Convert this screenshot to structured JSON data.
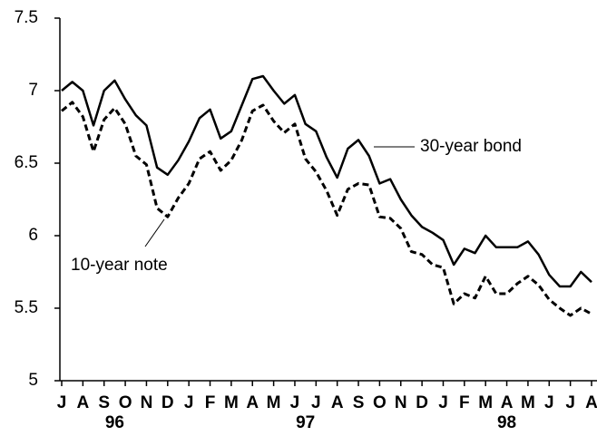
{
  "chart_data": {
    "type": "line",
    "x": [
      0,
      0.5,
      1,
      1.5,
      2,
      2.5,
      3,
      3.5,
      4,
      4.5,
      5,
      5.5,
      6,
      6.5,
      7,
      7.5,
      8,
      8.5,
      9,
      9.5,
      10,
      10.5,
      11,
      11.5,
      12,
      12.5,
      13,
      13.5,
      14,
      14.5,
      15,
      15.5,
      16,
      16.5,
      17,
      17.5,
      18,
      18.5,
      19,
      19.5,
      20,
      20.5,
      21,
      21.5,
      22,
      22.5,
      23,
      23.5,
      24,
      24.5,
      25
    ],
    "series": [
      {
        "name": "30-year bond",
        "color": "#000000",
        "line_style": "solid",
        "values": [
          7.0,
          7.06,
          7.0,
          6.76,
          7.0,
          7.07,
          6.94,
          6.83,
          6.76,
          6.47,
          6.42,
          6.52,
          6.65,
          6.81,
          6.87,
          6.67,
          6.72,
          6.9,
          7.08,
          7.1,
          7.0,
          6.91,
          6.97,
          6.77,
          6.72,
          6.54,
          6.4,
          6.6,
          6.66,
          6.55,
          6.36,
          6.39,
          6.25,
          6.14,
          6.06,
          6.02,
          5.97,
          5.8,
          5.91,
          5.88,
          6.0,
          5.92,
          5.92,
          5.92,
          5.96,
          5.87,
          5.73,
          5.65,
          5.65,
          5.75,
          5.68
        ]
      },
      {
        "name": "10-year note",
        "color": "#000000",
        "line_style": "dashed",
        "values": [
          6.86,
          6.92,
          6.82,
          6.58,
          6.8,
          6.88,
          6.77,
          6.55,
          6.49,
          6.19,
          6.13,
          6.26,
          6.36,
          6.53,
          6.58,
          6.45,
          6.52,
          6.66,
          6.86,
          6.9,
          6.79,
          6.71,
          6.77,
          6.53,
          6.44,
          6.31,
          6.14,
          6.32,
          6.36,
          6.35,
          6.13,
          6.12,
          6.05,
          5.89,
          5.87,
          5.8,
          5.78,
          5.53,
          5.6,
          5.57,
          5.72,
          5.6,
          5.6,
          5.67,
          5.72,
          5.66,
          5.56,
          5.5,
          5.45,
          5.5,
          5.46
        ]
      }
    ],
    "xlim": [
      0,
      25
    ],
    "xticks": [
      {
        "value": 0,
        "label": "J"
      },
      {
        "value": 1,
        "label": "A"
      },
      {
        "value": 2,
        "label": "S"
      },
      {
        "value": 3,
        "label": "O"
      },
      {
        "value": 4,
        "label": "N"
      },
      {
        "value": 5,
        "label": "D"
      },
      {
        "value": 6,
        "label": "J"
      },
      {
        "value": 7,
        "label": "F"
      },
      {
        "value": 8,
        "label": "M"
      },
      {
        "value": 9,
        "label": "A"
      },
      {
        "value": 10,
        "label": "M"
      },
      {
        "value": 11,
        "label": "J"
      },
      {
        "value": 12,
        "label": "J"
      },
      {
        "value": 13,
        "label": "A"
      },
      {
        "value": 14,
        "label": "S"
      },
      {
        "value": 15,
        "label": "O"
      },
      {
        "value": 16,
        "label": "N"
      },
      {
        "value": 17,
        "label": "D"
      },
      {
        "value": 18,
        "label": "J"
      },
      {
        "value": 19,
        "label": "F"
      },
      {
        "value": 20,
        "label": "M"
      },
      {
        "value": 21,
        "label": "A"
      },
      {
        "value": 22,
        "label": "M"
      },
      {
        "value": 23,
        "label": "J"
      },
      {
        "value": 24,
        "label": "J"
      },
      {
        "value": 25,
        "label": "A"
      }
    ],
    "year_labels": [
      {
        "value": 2.5,
        "label": "96"
      },
      {
        "value": 11.5,
        "label": "97"
      },
      {
        "value": 21,
        "label": "98"
      }
    ],
    "ylim": [
      5,
      7.5
    ],
    "yticks": [
      5,
      5.5,
      6,
      6.5,
      7,
      7.5
    ],
    "annotations": [
      "30-year bond",
      "10-year note"
    ]
  }
}
